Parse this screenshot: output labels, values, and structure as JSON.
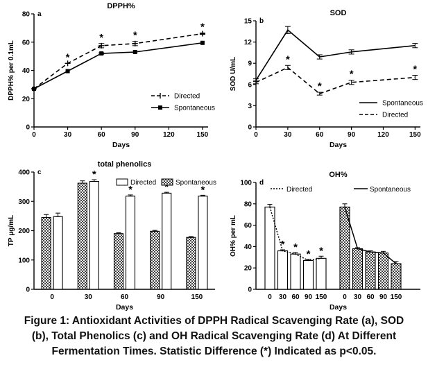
{
  "caption": {
    "line1": "Figure 1: Antioxidant Activities of DPPH Radical Scavenging Rate (a), SOD",
    "line2": "(b), Total Phenolics (c) and OH Radical Scavenging Rate (d) At Different",
    "line3": "Fermentation Times. Statistic Difference (*) Indicated as p<0.05."
  },
  "chart_data": [
    {
      "panel": "a",
      "type": "line",
      "title": "DPPH%",
      "xlabel": "Days",
      "ylabel": "DPPH% per 0.1mL",
      "xlim": [
        0,
        155
      ],
      "ylim": [
        0,
        80
      ],
      "xticks": [
        0,
        30,
        60,
        90,
        120,
        150
      ],
      "yticks": [
        0,
        20,
        40,
        60,
        80
      ],
      "legend_position": "bottom-right",
      "series": [
        {
          "name": "Directed",
          "style": "dashed",
          "marker": "plus",
          "x": [
            0,
            30,
            60,
            90,
            150
          ],
          "y": [
            27,
            45,
            57.5,
            59,
            66
          ],
          "err": [
            0,
            0,
            1.5,
            1.5,
            0.5
          ],
          "significant": [
            false,
            true,
            true,
            true,
            true
          ]
        },
        {
          "name": "Spontaneous",
          "style": "solid",
          "marker": "square",
          "x": [
            0,
            30,
            60,
            90,
            150
          ],
          "y": [
            27,
            39.5,
            52,
            53,
            59.5
          ],
          "err": [
            0,
            0,
            0.5,
            0,
            0
          ],
          "significant": [
            false,
            false,
            false,
            false,
            false
          ]
        }
      ]
    },
    {
      "panel": "b",
      "type": "line",
      "title": "SOD",
      "xlabel": "Days",
      "ylabel": "SOD U/mL",
      "xlim": [
        0,
        155
      ],
      "ylim": [
        0,
        15
      ],
      "xticks": [
        0,
        30,
        60,
        90,
        120,
        150
      ],
      "yticks": [
        0,
        3,
        6,
        9,
        12,
        15
      ],
      "legend_position": "bottom-right",
      "series": [
        {
          "name": "Spontaneous",
          "style": "solid",
          "x": [
            0,
            30,
            60,
            90,
            150
          ],
          "y": [
            6.6,
            13.7,
            9.9,
            10.6,
            11.5
          ],
          "err": [
            0.2,
            0.5,
            0.3,
            0.3,
            0.3
          ],
          "significant": [
            false,
            false,
            false,
            false,
            false
          ]
        },
        {
          "name": "Directed",
          "style": "dashed",
          "x": [
            0,
            30,
            60,
            90,
            150
          ],
          "y": [
            6.3,
            8.4,
            4.7,
            6.3,
            7.0
          ],
          "err": [
            0.2,
            0.3,
            0.2,
            0.3,
            0.3
          ],
          "significant": [
            false,
            true,
            true,
            true,
            true
          ]
        }
      ]
    },
    {
      "panel": "c",
      "type": "bar",
      "title": "total phenolics",
      "xlabel": "Days",
      "ylabel": "TP μg/mL",
      "ylim": [
        0,
        400
      ],
      "yticks": [
        0,
        100,
        200,
        300,
        400
      ],
      "categories": [
        "0",
        "30",
        "60",
        "90",
        "150"
      ],
      "legend_position": "top",
      "series": [
        {
          "name": "Spontaneous",
          "fill": "checkered",
          "values": [
            245,
            362,
            190,
            198,
            177
          ],
          "err": [
            10,
            8,
            3,
            3,
            3
          ]
        },
        {
          "name": "Directed",
          "fill": "white",
          "values": [
            248,
            368,
            318,
            328,
            318
          ],
          "err": [
            12,
            6,
            4,
            3,
            3
          ],
          "significant": [
            false,
            true,
            true,
            true,
            true
          ]
        }
      ]
    },
    {
      "panel": "d",
      "type": "bar",
      "title": "OH%",
      "xlabel": "Days",
      "ylabel": "OH% per mL",
      "ylim": [
        0,
        100
      ],
      "yticks": [
        0,
        20,
        40,
        60,
        80,
        100
      ],
      "legend_position": "top",
      "groups": [
        {
          "name": "Directed",
          "fill": "white",
          "line": "dotted",
          "categories": [
            "0",
            "30",
            "60",
            "90",
            "150"
          ],
          "values": [
            77,
            36,
            33,
            27,
            29
          ],
          "err": [
            2.5,
            1,
            1.5,
            1,
            2
          ],
          "significant": [
            false,
            true,
            true,
            true,
            true
          ]
        },
        {
          "name": "Spontaneous",
          "fill": "checkered",
          "line": "solid",
          "categories": [
            "0",
            "30",
            "60",
            "90",
            "150"
          ],
          "values": [
            77,
            38,
            35,
            34,
            24
          ],
          "err": [
            3,
            1,
            1,
            1.5,
            2
          ],
          "significant": [
            false,
            false,
            false,
            false,
            false
          ]
        }
      ]
    }
  ]
}
